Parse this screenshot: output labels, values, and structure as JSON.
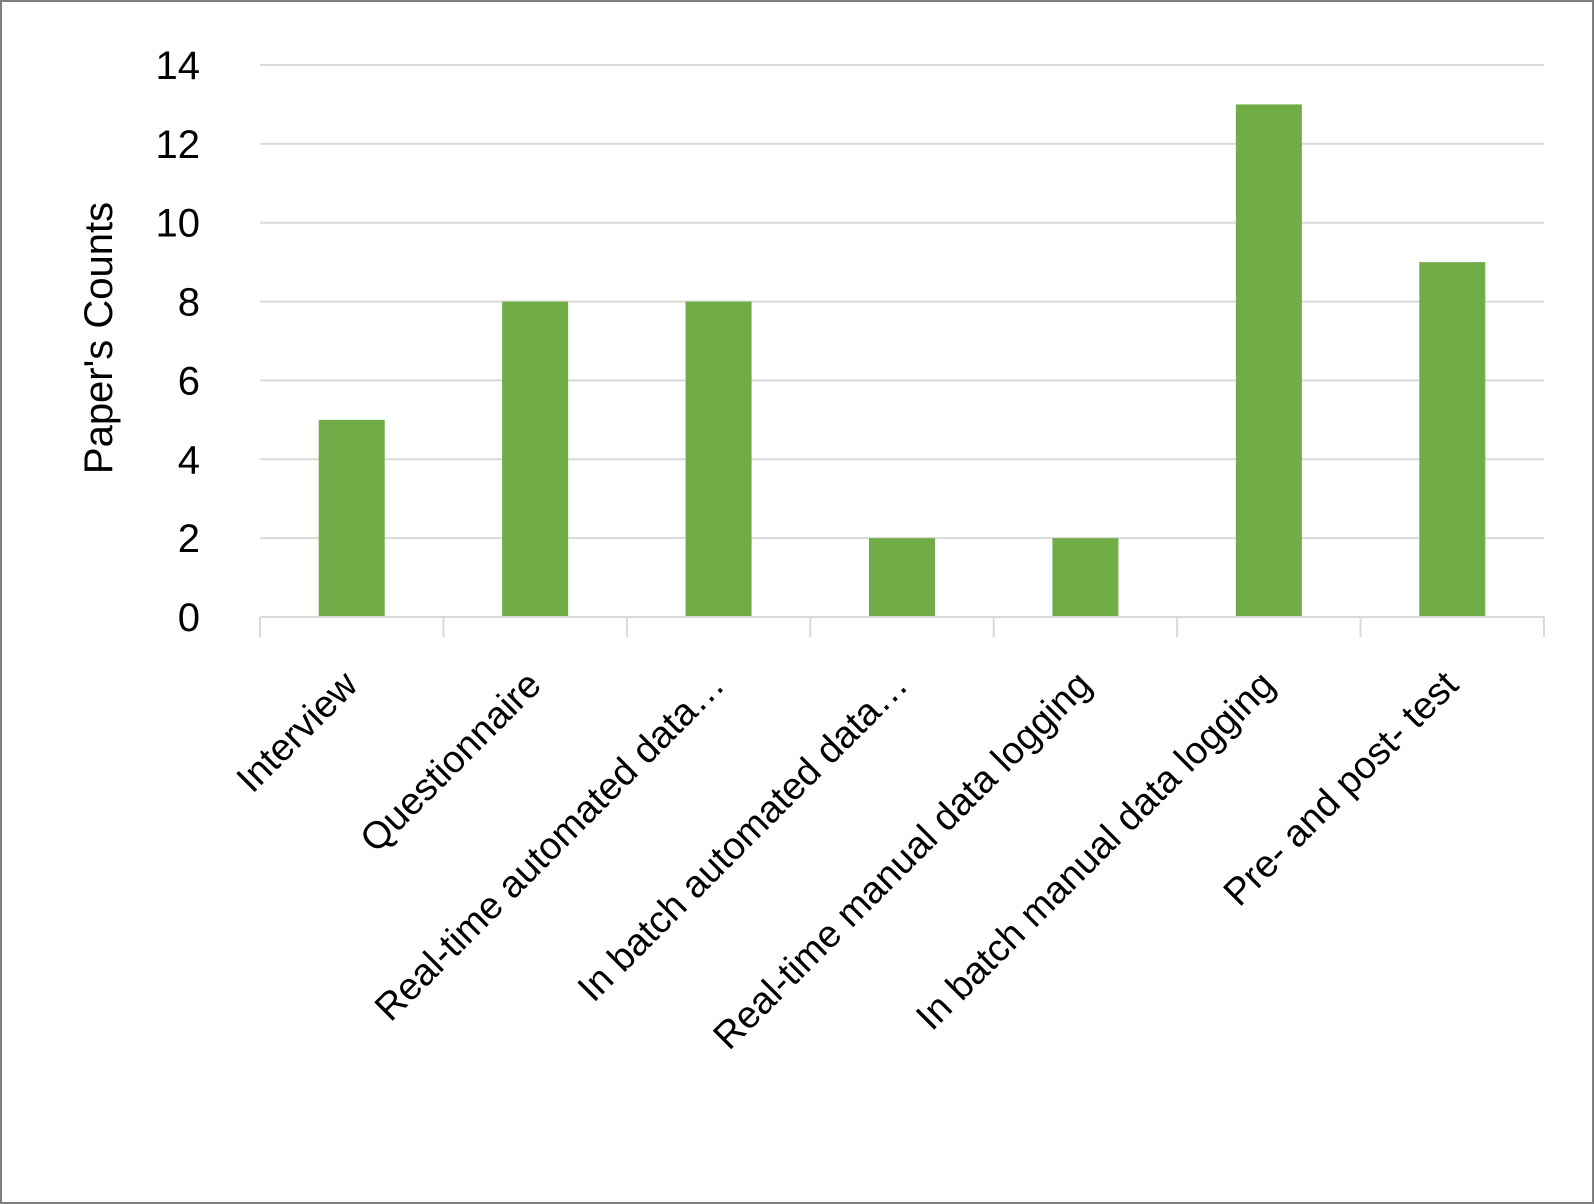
{
  "chart_data": {
    "type": "bar",
    "title": "",
    "xlabel": "",
    "ylabel": "Paper's Counts",
    "categories": [
      "Interview",
      "Questionnaire",
      "Real-time automated data…",
      "In batch automated data…",
      "Real-time manual data logging",
      "In batch manual data logging",
      "Pre- and post- test"
    ],
    "values": [
      5,
      8,
      8,
      2,
      2,
      13,
      9
    ],
    "ylim": [
      0,
      14
    ],
    "yticks": [
      0,
      2,
      4,
      6,
      8,
      10,
      12,
      14
    ],
    "grid": true,
    "legend": "none",
    "colors": {
      "bar": "#70ad47",
      "grid": "#d9d9d9",
      "axis": "#d9d9d9",
      "frame": "#7f7f7f"
    }
  }
}
